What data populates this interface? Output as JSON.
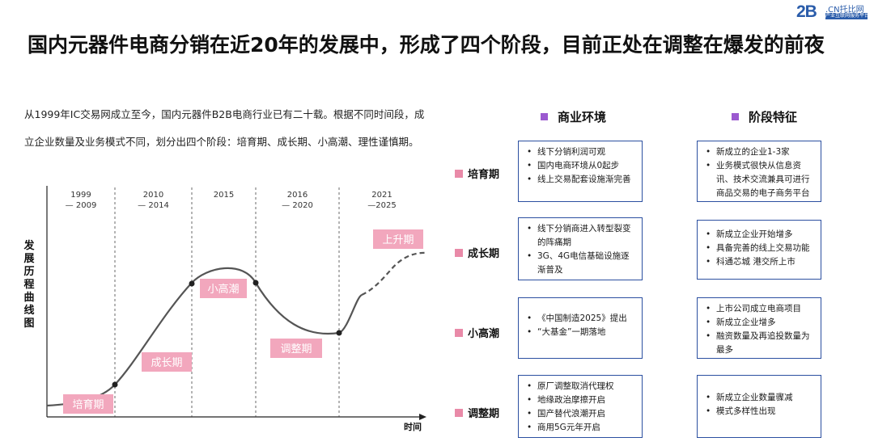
{
  "logo": {
    "main": "2B",
    "cn": ".CN托比网",
    "sub": "产业互联网服务平台"
  },
  "title": "国内元器件电商分销在近20年的发展中，形成了四个阶段，目前正处在调整在爆发的前夜",
  "intro": "从1999年IC交易网成立至今，国内元器件B2B电商行业已有二十载。根据不同时间段，成立企业数量及业务模式不同，划分出四个阶段：培育期、成长期、小高潮、理性谨慎期。",
  "chart_data": {
    "type": "line",
    "ylabel": "发展历程曲线图",
    "xlabel": "时间",
    "periods": [
      "1999\n— 2009",
      "2010\n— 2014",
      "2015",
      "2016\n— 2020",
      "2021\n—2025"
    ],
    "phase_tags": [
      "培育期",
      "成长期",
      "小高潮",
      "调整期",
      "上升期"
    ]
  },
  "columns": {
    "env": "商业环境",
    "feat": "阶段特征"
  },
  "stages": [
    {
      "label": "培育期",
      "env": [
        "线下分销利润可观",
        "国内电商环境从0起步",
        "线上交易配套设施渐完善"
      ],
      "feat": [
        "新成立的企业1-3家",
        "业务模式很快从信息资讯、技术交流兼具可进行商品交易的电子商务平台"
      ]
    },
    {
      "label": "成长期",
      "env": [
        "线下分销商进入转型裂变的阵痛期",
        "3G、4G电信基础设施逐渐普及"
      ],
      "feat": [
        "新成立企业开始增多",
        "具备完善的线上交易功能",
        "科通芯城 港交所上市"
      ]
    },
    {
      "label": "小高潮",
      "env": [
        "《中国制造2025》提出",
        "“大基金”一期落地"
      ],
      "feat": [
        "上市公司成立电商项目",
        "新成立企业增多",
        "融资数量及再追投数量为最多"
      ]
    },
    {
      "label": "调整期",
      "env": [
        "原厂调整取消代理权",
        "地缘政治摩擦开启",
        "国产替代浪潮开启",
        "商用5G元年开启"
      ],
      "feat": [
        "新成立企业数量骤减",
        "模式多样性出现"
      ]
    }
  ]
}
